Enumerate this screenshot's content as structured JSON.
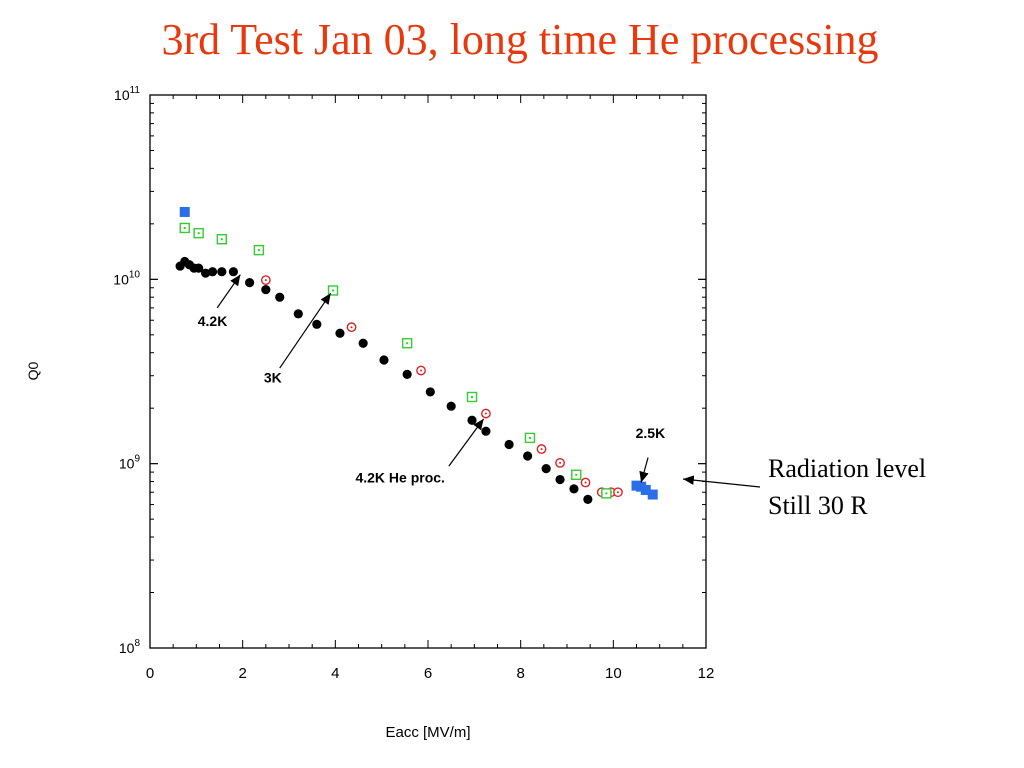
{
  "slide": {
    "title": "3rd Test Jan 03, long time He processing",
    "note_lines": [
      "Radiation level",
      "Still 30 R"
    ]
  },
  "chart_data": {
    "type": "scatter",
    "title": "3rd Test Jan 03, long time He processing",
    "xlabel": "Eacc [MV/m]",
    "ylabel": "Q0",
    "xlim": [
      0,
      12
    ],
    "ylim": [
      100000000.0,
      100000000000.0
    ],
    "y_scale": "log",
    "x_ticks": [
      0,
      2,
      4,
      6,
      8,
      10,
      12
    ],
    "y_ticks": [
      {
        "value": 100000000.0,
        "base": "10",
        "exp": "8"
      },
      {
        "value": 1000000000.0,
        "base": "10",
        "exp": "9"
      },
      {
        "value": 10000000000.0,
        "base": "10",
        "exp": "10"
      },
      {
        "value": 100000000000.0,
        "base": "10",
        "exp": "11"
      }
    ],
    "grid": false,
    "series": [
      {
        "id": "black",
        "marker": "filled-circle",
        "color": "#000000",
        "points": [
          [
            0.65,
            11800000000.0
          ],
          [
            0.75,
            12500000000.0
          ],
          [
            0.85,
            12000000000.0
          ],
          [
            0.95,
            11500000000.0
          ],
          [
            1.05,
            11500000000.0
          ],
          [
            1.2,
            10800000000.0
          ],
          [
            1.35,
            11000000000.0
          ],
          [
            1.55,
            11000000000.0
          ],
          [
            1.8,
            11000000000.0
          ],
          [
            2.15,
            9600000000.0
          ],
          [
            2.5,
            8800000000.0
          ],
          [
            2.8,
            8000000000.0
          ],
          [
            3.2,
            6500000000.0
          ],
          [
            3.6,
            5700000000.0
          ],
          [
            4.1,
            5100000000.0
          ],
          [
            4.6,
            4500000000.0
          ],
          [
            5.05,
            3650000000.0
          ],
          [
            5.55,
            3050000000.0
          ],
          [
            6.05,
            2450000000.0
          ],
          [
            6.5,
            2050000000.0
          ],
          [
            6.95,
            1720000000.0
          ],
          [
            7.25,
            1500000000.0
          ],
          [
            7.75,
            1270000000.0
          ],
          [
            8.15,
            1100000000.0
          ],
          [
            8.55,
            940000000.0
          ],
          [
            8.85,
            820000000.0
          ],
          [
            9.15,
            730000000.0
          ],
          [
            9.45,
            640000000.0
          ],
          [
            9.9,
            690000000.0
          ]
        ]
      },
      {
        "id": "red",
        "marker": "open-circle-dot",
        "color": "#e02020",
        "points": [
          [
            2.5,
            9900000000.0
          ],
          [
            4.35,
            5500000000.0
          ],
          [
            5.85,
            3200000000.0
          ],
          [
            7.25,
            1870000000.0
          ],
          [
            8.45,
            1200000000.0
          ],
          [
            8.85,
            1010000000.0
          ],
          [
            9.4,
            790000000.0
          ],
          [
            9.75,
            700000000.0
          ],
          [
            9.95,
            700000000.0
          ],
          [
            10.1,
            700000000.0
          ]
        ]
      },
      {
        "id": "green",
        "marker": "open-square-dot",
        "color": "#33cc33",
        "points": [
          [
            0.75,
            19000000000.0
          ],
          [
            1.05,
            17800000000.0
          ],
          [
            1.55,
            16500000000.0
          ],
          [
            2.35,
            14400000000.0
          ],
          [
            3.95,
            8700000000.0
          ],
          [
            5.55,
            4500000000.0
          ],
          [
            6.95,
            2300000000.0
          ],
          [
            8.2,
            1380000000.0
          ],
          [
            9.2,
            870000000.0
          ],
          [
            9.85,
            690000000.0
          ]
        ]
      },
      {
        "id": "blue",
        "marker": "filled-square",
        "color": "#2a6fe8",
        "points": [
          [
            0.75,
            23200000000.0
          ],
          [
            10.5,
            760000000.0
          ],
          [
            10.6,
            750000000.0
          ],
          [
            10.7,
            720000000.0
          ],
          [
            10.85,
            680000000.0
          ]
        ]
      }
    ],
    "annotations": [
      {
        "label": "4.2K",
        "text_x": 1.35,
        "text_y": 5600000000.0,
        "arrow_from": [
          1.45,
          7000000000.0
        ],
        "arrow_to": [
          1.95,
          10600000000.0
        ]
      },
      {
        "label": "3K",
        "text_x": 2.65,
        "text_y": 2750000000.0,
        "arrow_from": [
          2.8,
          3300000000.0
        ],
        "arrow_to": [
          3.9,
          8400000000.0
        ]
      },
      {
        "label": "4.2K He proc.",
        "text_x": 5.4,
        "text_y": 790000000.0,
        "arrow_from": [
          6.45,
          970000000.0
        ],
        "arrow_to": [
          7.2,
          1750000000.0
        ]
      },
      {
        "label": "2.5K",
        "text_x": 10.8,
        "text_y": 1380000000.0,
        "arrow_from": [
          10.75,
          1080000000.0
        ],
        "arrow_to": [
          10.6,
          790000000.0
        ]
      }
    ]
  }
}
